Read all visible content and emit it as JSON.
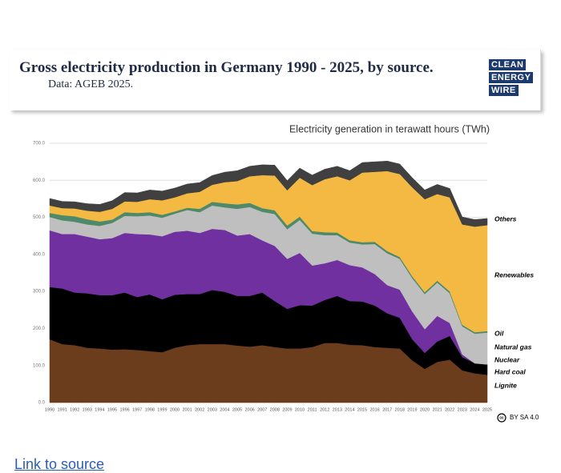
{
  "header": {
    "title": "Gross electricity production in Germany 1990 - 2025, by source.",
    "subtitle": "Data: AGEB 2025.",
    "logo": [
      "CLEAN",
      "ENERGY",
      "WIRE"
    ]
  },
  "chart_data": {
    "type": "stacked_area",
    "title": "Electricity generation in terawatt hours (TWh)",
    "categories": [
      "1990",
      "1991",
      "1992",
      "1993",
      "1994",
      "1995",
      "1996",
      "1997",
      "1998",
      "1999",
      "2000",
      "2001",
      "2002",
      "2003",
      "2004",
      "2005",
      "2006",
      "2007",
      "2008",
      "2009",
      "2010",
      "2011",
      "2012",
      "2013",
      "2014",
      "2015",
      "2016",
      "2017",
      "2018",
      "2019",
      "2020",
      "2021",
      "2022",
      "2023",
      "2024",
      "2025"
    ],
    "series": [
      {
        "name": "Lignite",
        "color": "#6b3d1c",
        "values": [
          171,
          158,
          155,
          148,
          146,
          143,
          144,
          142,
          139,
          136,
          148,
          155,
          158,
          158,
          158,
          154,
          151,
          155,
          150,
          146,
          146,
          150,
          161,
          161,
          156,
          155,
          150,
          148,
          146,
          114,
          91,
          110,
          116,
          87,
          79,
          75
        ]
      },
      {
        "name": "Hard coal",
        "color": "#000000",
        "values": [
          141,
          150,
          142,
          147,
          144,
          147,
          153,
          143,
          153,
          143,
          143,
          138,
          135,
          146,
          141,
          134,
          137,
          142,
          124,
          107,
          117,
          112,
          116,
          127,
          118,
          118,
          112,
          93,
          83,
          57,
          43,
          55,
          64,
          36,
          27,
          28
        ]
      },
      {
        "name": "Nuclear",
        "color": "#7030a0",
        "values": [
          153,
          147,
          158,
          153,
          151,
          154,
          161,
          170,
          162,
          170,
          170,
          171,
          165,
          165,
          167,
          163,
          167,
          141,
          149,
          135,
          141,
          108,
          99,
          97,
          97,
          92,
          85,
          76,
          76,
          75,
          64,
          69,
          35,
          7,
          0,
          0
        ]
      },
      {
        "name": "Natural gas",
        "color": "#bfbfbf",
        "values": [
          36,
          37,
          33,
          33,
          36,
          41,
          46,
          48,
          51,
          50,
          49,
          56,
          56,
          63,
          61,
          72,
          73,
          77,
          86,
          80,
          89,
          86,
          76,
          67,
          61,
          62,
          81,
          86,
          83,
          90,
          95,
          90,
          80,
          76,
          80,
          86
        ]
      },
      {
        "name": "Oil",
        "color": "#4e8a6a",
        "values": [
          11,
          14,
          15,
          14,
          12,
          9,
          10,
          9,
          9,
          8,
          6,
          6,
          9,
          10,
          11,
          12,
          11,
          10,
          10,
          10,
          9,
          7,
          8,
          7,
          6,
          6,
          6,
          6,
          5,
          5,
          5,
          5,
          5,
          4,
          4,
          4
        ]
      },
      {
        "name": "Renewables",
        "color": "#f4b942",
        "values": [
          20,
          19,
          21,
          23,
          26,
          29,
          29,
          30,
          35,
          39,
          38,
          39,
          46,
          46,
          57,
          63,
          72,
          89,
          94,
          95,
          105,
          124,
          143,
          152,
          162,
          188,
          189,
          216,
          224,
          240,
          251,
          234,
          254,
          271,
          285,
          286
        ]
      },
      {
        "name": "Others",
        "color": "#404040",
        "values": [
          19,
          18,
          18,
          19,
          20,
          22,
          24,
          24,
          25,
          25,
          25,
          25,
          25,
          25,
          27,
          28,
          27,
          28,
          28,
          26,
          26,
          27,
          27,
          27,
          26,
          27,
          27,
          27,
          27,
          26,
          25,
          26,
          24,
          20,
          19,
          18
        ]
      }
    ],
    "ylim": [
      0,
      700
    ],
    "yticks": [
      {
        "value": 0,
        "label": "0.0"
      },
      {
        "value": 100,
        "label": "100.0"
      },
      {
        "value": 200,
        "label": "200.0"
      },
      {
        "value": 300,
        "label": "300.0"
      },
      {
        "value": 400,
        "label": "400.0"
      },
      {
        "value": 500,
        "label": "500.0"
      },
      {
        "value": 600,
        "label": "600.0"
      },
      {
        "value": 700,
        "label": "700.0"
      }
    ],
    "grid": true
  },
  "license": "BY SA 4.0",
  "link": "Link to source"
}
